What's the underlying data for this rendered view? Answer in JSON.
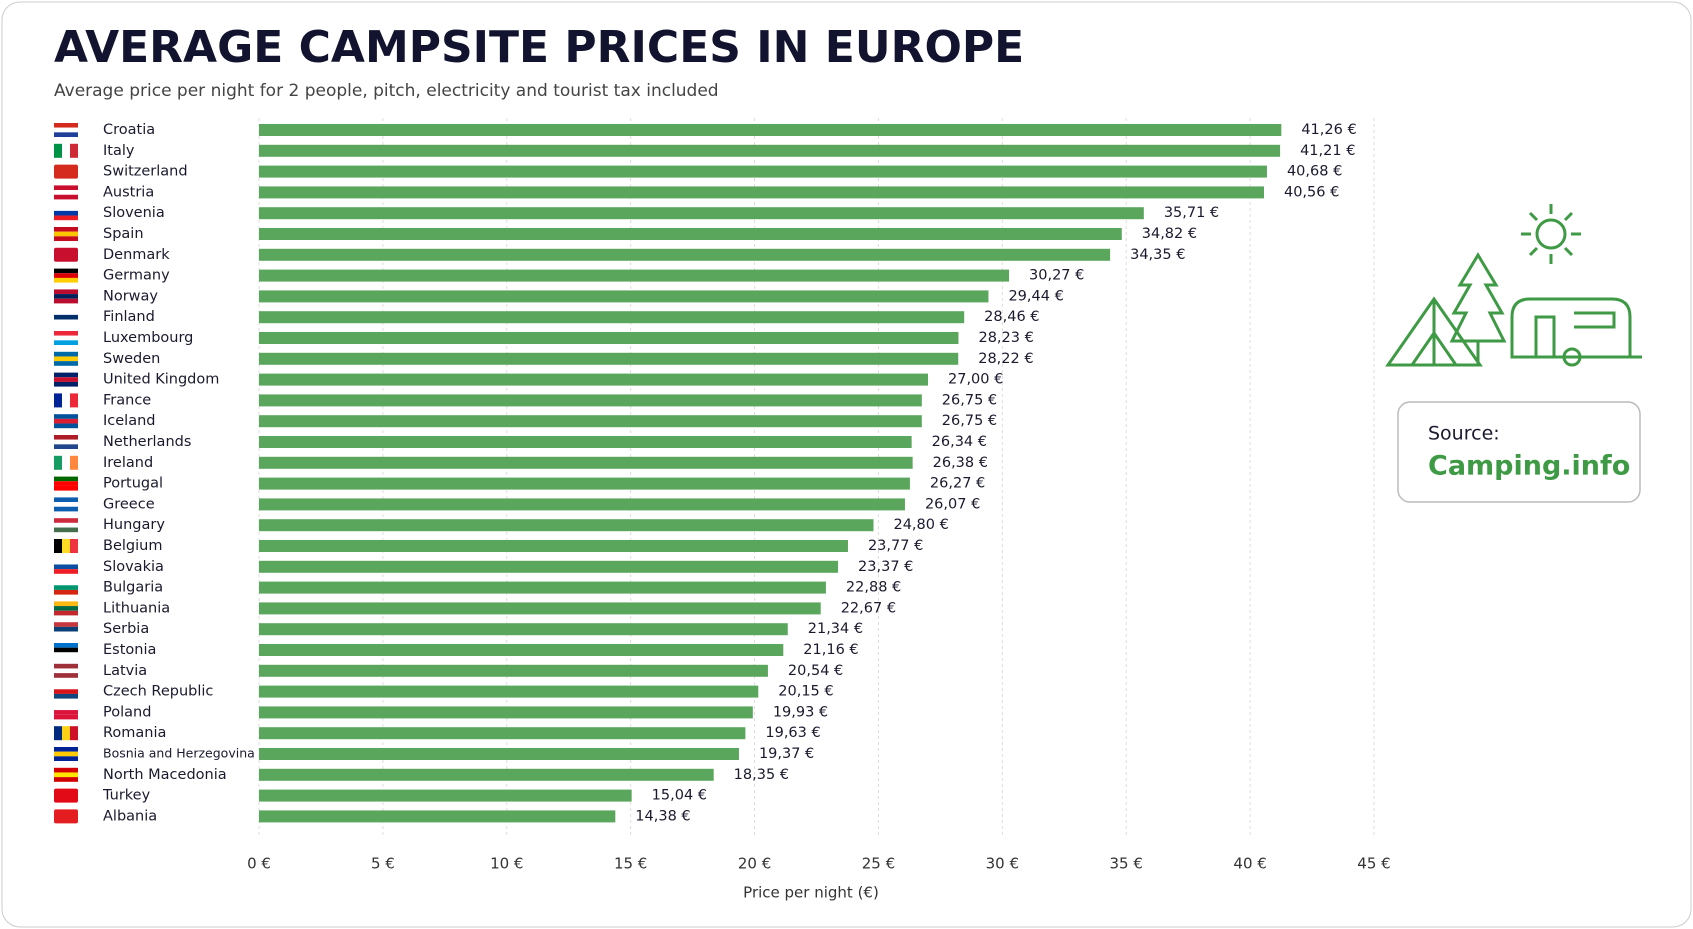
{
  "chart_data": {
    "type": "bar",
    "orientation": "horizontal",
    "title": "AVERAGE CAMPSITE PRICES IN EUROPE",
    "subtitle": "Average price per night for 2 people, pitch, electricity and tourist tax included",
    "x_label": "Price per night (€)",
    "categories": [
      "Croatia",
      "Italy",
      "Switzerland",
      "Austria",
      "Slovenia",
      "Spain",
      "Denmark",
      "Germany",
      "Norway",
      "Finland",
      "Luxembourg",
      "Sweden",
      "United Kingdom",
      "France",
      "Iceland",
      "Netherlands",
      "Ireland",
      "Portugal",
      "Greece",
      "Hungary",
      "Belgium",
      "Slovakia",
      "Bulgaria",
      "Lithuania",
      "Serbia",
      "Estonia",
      "Latvia",
      "Czech Republic",
      "Poland",
      "Romania",
      "Bosnia and Herzegovina",
      "North Macedonia",
      "Turkey",
      "Albania"
    ],
    "values": [
      41.26,
      41.21,
      40.68,
      40.56,
      35.71,
      34.82,
      34.35,
      30.27,
      29.44,
      28.46,
      28.23,
      28.22,
      27.0,
      26.75,
      26.75,
      26.34,
      26.38,
      26.27,
      26.07,
      24.8,
      23.77,
      23.37,
      22.88,
      22.67,
      21.34,
      21.16,
      20.54,
      20.15,
      19.93,
      19.63,
      19.37,
      18.35,
      15.04,
      14.38
    ],
    "value_labels": [
      "41,26 €",
      "41,21 €",
      "40,68 €",
      "40,56 €",
      "35,71 €",
      "34,82 €",
      "34,35 €",
      "30,27 €",
      "29,44 €",
      "28,46 €",
      "28,23 €",
      "28,22 €",
      "27,00 €",
      "26,75 €",
      "26,75 €",
      "26,34 €",
      "26,38 €",
      "26,27 €",
      "26,07 €",
      "24,80 €",
      "23,77 €",
      "23,37 €",
      "22,88 €",
      "22,67 €",
      "21,34 €",
      "21,16 €",
      "20,54 €",
      "20,15 €",
      "19,93 €",
      "19,63 €",
      "19,37 €",
      "18,35 €",
      "15,04 €",
      "14,38 €"
    ],
    "color": "#5aa65c",
    "xlim": [
      0,
      45
    ],
    "xticks": [
      {
        "value": 0,
        "label": "0 €"
      },
      {
        "value": 5,
        "label": "5 €"
      },
      {
        "value": 10,
        "label": "10 €"
      },
      {
        "value": 15,
        "label": "15 €"
      },
      {
        "value": 20,
        "label": "20 €"
      },
      {
        "value": 25,
        "label": "25 €"
      },
      {
        "value": 30,
        "label": "30 €"
      },
      {
        "value": 35,
        "label": "35 €"
      },
      {
        "value": 40,
        "label": "40 €"
      },
      {
        "value": 45,
        "label": "45 €"
      }
    ],
    "grid": true
  },
  "source": {
    "label": "Source:",
    "name": "Camping.info"
  }
}
